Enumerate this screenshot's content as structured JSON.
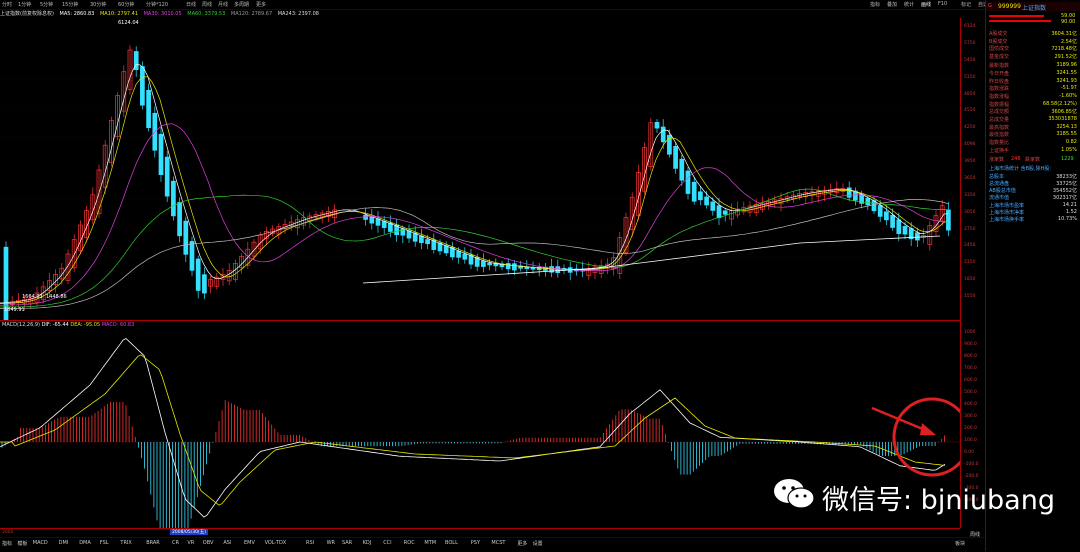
{
  "toolbar": {
    "periods": [
      "分时",
      "1分钟",
      "5分钟",
      "15分钟",
      "30分钟",
      "60分钟",
      "分钟*120",
      "日线",
      "周线",
      "月线",
      "多周期",
      "更多"
    ],
    "right_tools": [
      "指标",
      "叠加",
      "统计",
      "画线",
      "F10",
      "标记",
      "自选",
      "返回"
    ]
  },
  "info_line": {
    "name": "上证指数(前复权除息权)",
    "ma5": "MA5: 2860.83",
    "ma10": "MA10: 2797.41",
    "ma30": "MA30: 3010.05",
    "ma60": "MA60: 3379.53",
    "ma120": "MA120: 2789.67",
    "ma243": "MA243: 2397.08"
  },
  "price_labels": {
    "peak": "6124.04",
    "low1": "1664.93",
    "low2": "1448.86",
    "low3": "1849.91"
  },
  "macd_info": {
    "title": "MACD(12,26,9)",
    "dif": "DIF: -65.44",
    "dea": "DEA: -95.05",
    "macd": "MACD: 60.83"
  },
  "price_axis": [
    "6124",
    "5750",
    "5450",
    "5150",
    "4850",
    "4550",
    "4250",
    "4096",
    "3950",
    "3650",
    "3350",
    "3050",
    "2750",
    "2450",
    "2150",
    "1850",
    "1550"
  ],
  "macd_axis": [
    "1000",
    "900.0",
    "800.0",
    "700.0",
    "600.0",
    "500.0",
    "400.0",
    "300.0",
    "200.0",
    "100.0",
    "0.00",
    "-100.0",
    "-200.0",
    "-300.0",
    "-400.0"
  ],
  "right_panel": {
    "code": "999999",
    "name": "上证指数",
    "price_top": "59.00",
    "price_bottom": "90.00",
    "rows": [
      {
        "label": "A股成交",
        "value": "3604.31亿"
      },
      {
        "label": "B股成交",
        "value": "2.54亿"
      },
      {
        "label": "国债成交",
        "value": "7218.48亿"
      },
      {
        "label": "基金成交",
        "value": "291.52亿"
      },
      {
        "label": "最新指数",
        "value": "3189.96"
      },
      {
        "label": "今日开盘",
        "value": "3241.55"
      },
      {
        "label": "昨日收盘",
        "value": "3241.93"
      },
      {
        "label": "指数涨跌",
        "value": "-51.97"
      },
      {
        "label": "指数涨幅",
        "value": "-1.60%"
      },
      {
        "label": "指数振幅",
        "value": "68.58(2.12%)"
      },
      {
        "label": "总成交额",
        "value": "3606.85亿"
      },
      {
        "label": "总成交量",
        "value": "353031878"
      },
      {
        "label": "最高指数",
        "value": "3254.13"
      },
      {
        "label": "最低指数",
        "value": "3185.55"
      },
      {
        "label": "指数量比",
        "value": "0.82"
      },
      {
        "label": "上证换手",
        "value": "1.05%"
      }
    ],
    "up_label": "涨家数",
    "up_value": "246",
    "down_label": "跌家数",
    "down_value": "1229",
    "stat_title": "上海市场统计 含B股,除H股:",
    "stats": [
      {
        "label": "总股本",
        "value": "38233亿"
      },
      {
        "label": "总流通盘",
        "value": "33725亿"
      },
      {
        "label": "AB股总市值",
        "value": "354552亿"
      },
      {
        "label": "流通市值",
        "value": "302317亿"
      },
      {
        "label": "上海市场市盈率",
        "value": "14.21"
      },
      {
        "label": "上海市场市净率",
        "value": "1.52"
      },
      {
        "label": "上海市场换手率",
        "value": "10.73%"
      }
    ]
  },
  "date_axis": {
    "highlight": "2008/05/30(五)",
    "year_label": "2005"
  },
  "bottom_tabs": [
    "指标",
    "模板",
    "MACD",
    "DMI",
    "DMA",
    "FSL",
    "TRIX",
    "BRAR",
    "CR",
    "VR",
    "OBV",
    "ASI",
    "EMV",
    "VOL-TDX",
    "RSI",
    "WR",
    "SAR",
    "KDJ",
    "CCI",
    "ROC",
    "MTM",
    "BOLL",
    "PSY",
    "MCST",
    "更多",
    "设置"
  ],
  "bottom_right": "板块",
  "bottom_right2": "周线",
  "watermark": "微信号: bjniubang",
  "colors": {
    "up": "#ff3333",
    "down": "#33e0ff",
    "dif": "#ffffff",
    "dea": "#e8e800",
    "accent": "#cc0000"
  }
}
